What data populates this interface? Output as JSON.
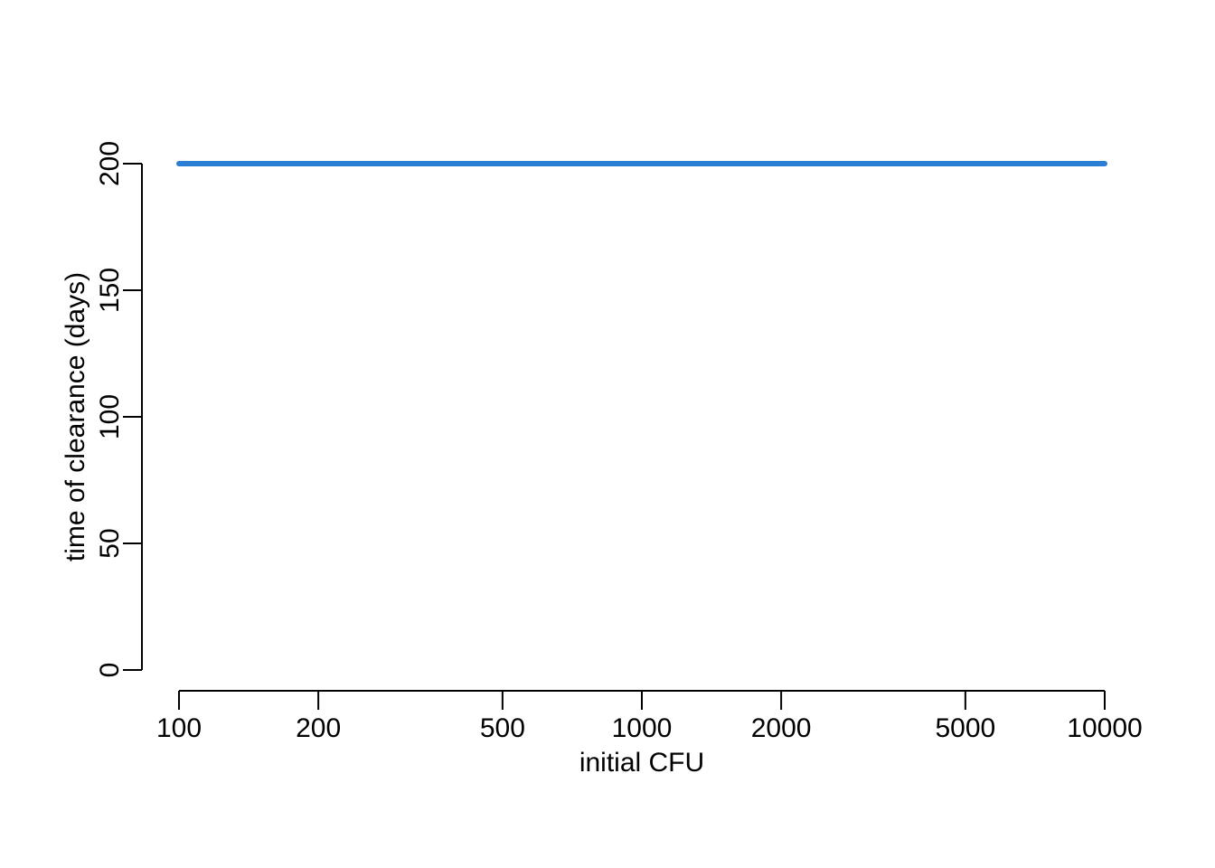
{
  "chart_data": {
    "type": "line",
    "xlabel": "initial CFU",
    "ylabel": "time of clearance (days)",
    "x_scale": "log",
    "xlim": [
      100,
      10000
    ],
    "ylim": [
      0,
      200
    ],
    "x_ticks": [
      100,
      200,
      500,
      1000,
      2000,
      5000,
      10000
    ],
    "x_tick_labels": [
      "100",
      "200",
      "500",
      "1000",
      "2000",
      "5000",
      "10000"
    ],
    "y_ticks": [
      0,
      50,
      100,
      150,
      200
    ],
    "y_tick_labels": [
      "0",
      "50",
      "100",
      "150",
      "200"
    ],
    "grid": false,
    "series": [
      {
        "color": "#2a7fd4",
        "x": [
          100,
          10000
        ],
        "y": [
          200,
          200
        ]
      }
    ]
  }
}
